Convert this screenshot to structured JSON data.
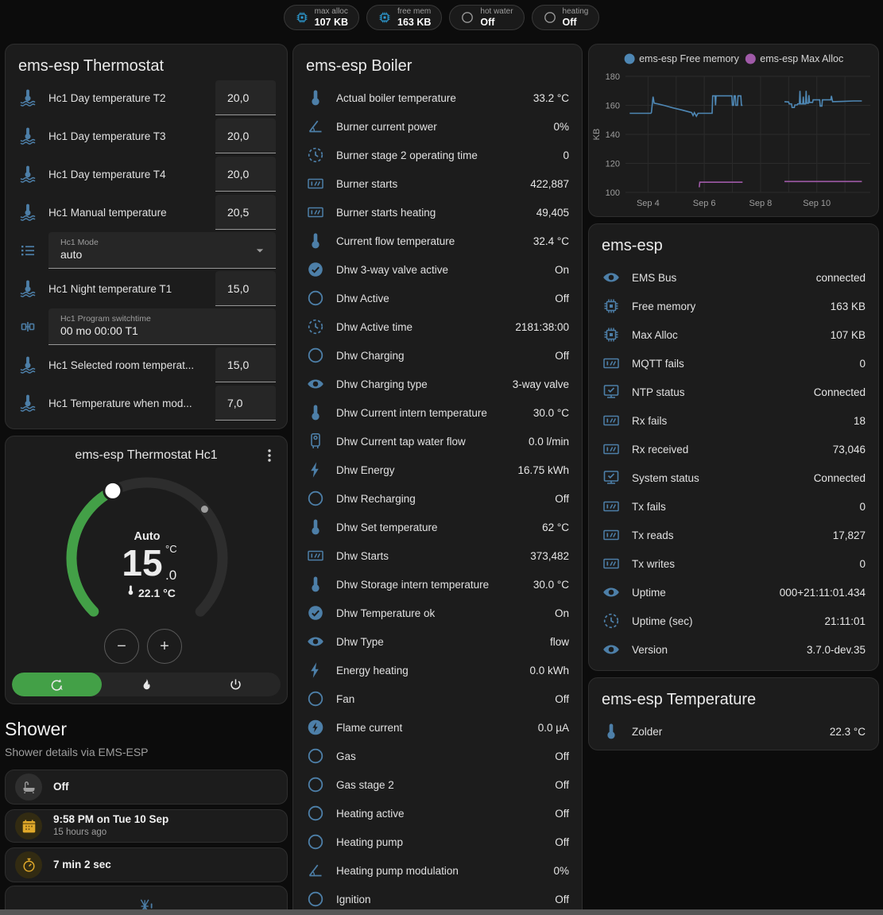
{
  "colors": {
    "icon_blue": "#4d7fa8",
    "chip_icon_blue": "#2d9fd8",
    "accent_green": "#43a047",
    "yellow": "#e0a92a",
    "chart_blue": "#4e87b4",
    "chart_purple": "#a05aa8"
  },
  "header": {
    "chips": [
      {
        "label": "max alloc",
        "value": "107 KB",
        "icon": "chip",
        "icon_color": "#2d9fd8"
      },
      {
        "label": "free mem",
        "value": "163 KB",
        "icon": "chip",
        "icon_color": "#2d9fd8"
      },
      {
        "label": "hot water",
        "value": "Off",
        "icon": "circle-outline",
        "icon_color": "#9a9a9a"
      },
      {
        "label": "heating",
        "value": "Off",
        "icon": "circle-outline",
        "icon_color": "#9a9a9a"
      }
    ]
  },
  "thermostat_card": {
    "title": "ems-esp Thermostat",
    "rows": [
      {
        "type": "number",
        "icon": "thermometer-water",
        "label": "Hc1 Day temperature T2",
        "value": "20,0"
      },
      {
        "type": "number",
        "icon": "thermometer-water",
        "label": "Hc1 Day temperature T3",
        "value": "20,0"
      },
      {
        "type": "number",
        "icon": "thermometer-water",
        "label": "Hc1 Day temperature T4",
        "value": "20,0"
      },
      {
        "type": "number",
        "icon": "thermometer-water",
        "label": "Hc1 Manual temperature",
        "value": "20,5"
      },
      {
        "type": "select",
        "icon": "list",
        "label": "Hc1 Mode",
        "value": "auto"
      },
      {
        "type": "number",
        "icon": "thermometer-water",
        "label": "Hc1 Night temperature T1",
        "value": "15,0"
      },
      {
        "type": "text",
        "icon": "valve",
        "label": "Hc1 Program switchtime",
        "value": "00 mo 00:00 T1"
      },
      {
        "type": "number",
        "icon": "thermometer-water",
        "label": "Hc1 Selected room temperat...",
        "value": "15,0"
      },
      {
        "type": "number",
        "icon": "thermometer-water",
        "label": "Hc1 Temperature when mod...",
        "value": "7,0"
      }
    ]
  },
  "dial_card": {
    "title": "ems-esp Thermostat Hc1",
    "mode_label": "Auto",
    "target_int": "15",
    "target_unit": "°C",
    "target_decimal": ".0",
    "current_label": "22.1 °C",
    "scale_min": 5,
    "scale_max": 30,
    "target": 15.0,
    "current": 22.1,
    "minus_label": "−",
    "plus_label": "+",
    "modes": [
      {
        "name": "auto",
        "icon": "mode-auto",
        "active": true
      },
      {
        "name": "heat",
        "icon": "fire",
        "active": false
      },
      {
        "name": "off",
        "icon": "power",
        "active": false
      }
    ]
  },
  "shower": {
    "title": "Shower",
    "subtitle": "Shower details via EMS-ESP",
    "items": [
      {
        "icon": "bathtub",
        "icon_color": "#9e9e9e",
        "circle_bg": "#2f2f2f",
        "primary": "Off",
        "secondary": ""
      },
      {
        "icon": "calendar",
        "icon_color": "#e0a92a",
        "circle_bg": "#322b12",
        "primary": "9:58 PM on Tue 10 Sep",
        "secondary": "15 hours ago"
      },
      {
        "icon": "timer",
        "icon_color": "#e0a92a",
        "circle_bg": "#322b12",
        "primary": "7 min 2 sec",
        "secondary": ""
      }
    ],
    "frost_icon": "snowflake-alert"
  },
  "boiler_card": {
    "title": "ems-esp Boiler",
    "rows": [
      {
        "icon": "thermometer",
        "label": "Actual boiler temperature",
        "value": "33.2 °C"
      },
      {
        "icon": "angle",
        "label": "Burner current power",
        "value": "0%"
      },
      {
        "icon": "clock",
        "label": "Burner stage 2 operating time",
        "value": "0"
      },
      {
        "icon": "counter",
        "label": "Burner starts",
        "value": "422,887"
      },
      {
        "icon": "counter",
        "label": "Burner starts heating",
        "value": "49,405"
      },
      {
        "icon": "thermometer",
        "label": "Current flow temperature",
        "value": "32.4 °C"
      },
      {
        "icon": "check-circle",
        "label": "Dhw 3-way valve active",
        "value": "On"
      },
      {
        "icon": "circle-outline",
        "label": "Dhw Active",
        "value": "Off"
      },
      {
        "icon": "clock",
        "label": "Dhw Active time",
        "value": "2181:38:00"
      },
      {
        "icon": "circle-outline",
        "label": "Dhw Charging",
        "value": "Off"
      },
      {
        "icon": "eye",
        "label": "Dhw Charging type",
        "value": "3-way valve"
      },
      {
        "icon": "thermometer",
        "label": "Dhw Current intern temperature",
        "value": "30.0 °C"
      },
      {
        "icon": "water-heater",
        "label": "Dhw Current tap water flow",
        "value": "0.0 l/min"
      },
      {
        "icon": "flash",
        "label": "Dhw Energy",
        "value": "16.75 kWh"
      },
      {
        "icon": "circle-outline",
        "label": "Dhw Recharging",
        "value": "Off"
      },
      {
        "icon": "thermometer",
        "label": "Dhw Set temperature",
        "value": "62 °C"
      },
      {
        "icon": "counter",
        "label": "Dhw Starts",
        "value": "373,482"
      },
      {
        "icon": "thermometer",
        "label": "Dhw Storage intern temperature",
        "value": "30.0 °C"
      },
      {
        "icon": "check-circle",
        "label": "Dhw Temperature ok",
        "value": "On"
      },
      {
        "icon": "eye",
        "label": "Dhw Type",
        "value": "flow"
      },
      {
        "icon": "flash",
        "label": "Energy heating",
        "value": "0.0 kWh"
      },
      {
        "icon": "circle-outline",
        "label": "Fan",
        "value": "Off"
      },
      {
        "icon": "flash-circle",
        "label": "Flame current",
        "value": "0.0 µA"
      },
      {
        "icon": "circle-outline",
        "label": "Gas",
        "value": "Off"
      },
      {
        "icon": "circle-outline",
        "label": "Gas stage 2",
        "value": "Off"
      },
      {
        "icon": "circle-outline",
        "label": "Heating active",
        "value": "Off"
      },
      {
        "icon": "circle-outline",
        "label": "Heating pump",
        "value": "Off"
      },
      {
        "icon": "angle",
        "label": "Heating pump modulation",
        "value": "0%"
      },
      {
        "icon": "circle-outline",
        "label": "Ignition",
        "value": "Off"
      }
    ]
  },
  "emsesp_card": {
    "title": "ems-esp",
    "rows": [
      {
        "icon": "eye",
        "label": "EMS Bus",
        "value": "connected"
      },
      {
        "icon": "chip",
        "label": "Free memory",
        "value": "163 KB"
      },
      {
        "icon": "chip",
        "label": "Max Alloc",
        "value": "107 KB"
      },
      {
        "icon": "counter",
        "label": "MQTT fails",
        "value": "0"
      },
      {
        "icon": "monitor-check",
        "label": "NTP status",
        "value": "Connected"
      },
      {
        "icon": "counter",
        "label": "Rx fails",
        "value": "18"
      },
      {
        "icon": "counter",
        "label": "Rx received",
        "value": "73,046"
      },
      {
        "icon": "monitor-check",
        "label": "System status",
        "value": "Connected"
      },
      {
        "icon": "counter",
        "label": "Tx fails",
        "value": "0"
      },
      {
        "icon": "counter",
        "label": "Tx reads",
        "value": "17,827"
      },
      {
        "icon": "counter",
        "label": "Tx writes",
        "value": "0"
      },
      {
        "icon": "eye",
        "label": "Uptime",
        "value": "000+21:11:01.434"
      },
      {
        "icon": "clock",
        "label": "Uptime (sec)",
        "value": "21:11:01"
      },
      {
        "icon": "eye",
        "label": "Version",
        "value": "3.7.0-dev.35"
      }
    ]
  },
  "temperature_card": {
    "title": "ems-esp Temperature",
    "rows": [
      {
        "icon": "thermometer",
        "label": "Zolder",
        "value": "22.3 °C"
      }
    ]
  },
  "chart_data": {
    "type": "line",
    "title": "",
    "ylabel": "KB",
    "ylim": [
      100,
      180
    ],
    "y_ticks": [
      100,
      120,
      140,
      160,
      180
    ],
    "x_range_days": [
      3.2,
      11.9
    ],
    "x_ticks": [
      {
        "day": 4,
        "label": "Sep 4"
      },
      {
        "day": 6,
        "label": "Sep 6"
      },
      {
        "day": 8,
        "label": "Sep 8"
      },
      {
        "day": 10,
        "label": "Sep 10"
      }
    ],
    "grid": true,
    "legend_position": "top",
    "series": [
      {
        "name": "ems-esp Free memory",
        "color": "#4e87b4",
        "segments": [
          [
            [
              3.35,
              154.5
            ],
            [
              4.1,
              154.5
            ],
            [
              4.12,
              155
            ],
            [
              4.18,
              166
            ],
            [
              4.22,
              161.5
            ],
            [
              4.35,
              161
            ],
            [
              4.6,
              159.8
            ],
            [
              4.9,
              158.2
            ],
            [
              5.2,
              156.8
            ],
            [
              5.45,
              155.5
            ],
            [
              5.55,
              155
            ],
            [
              5.6,
              153
            ],
            [
              5.65,
              155
            ],
            [
              5.72,
              152.5
            ],
            [
              5.78,
              154.5
            ],
            [
              6.28,
              154.5
            ],
            [
              6.3,
              166.5
            ],
            [
              6.38,
              166.5
            ],
            [
              6.4,
              160
            ],
            [
              6.42,
              166.5
            ],
            [
              6.98,
              166.5
            ],
            [
              7.0,
              160
            ],
            [
              7.04,
              160
            ],
            [
              7.06,
              166.5
            ],
            [
              7.1,
              166.5
            ],
            [
              7.12,
              160
            ],
            [
              7.18,
              160
            ],
            [
              7.2,
              166.5
            ],
            [
              7.3,
              166.5
            ],
            [
              7.32,
              160
            ],
            [
              7.36,
              160
            ]
          ],
          [
            [
              8.85,
              162.5
            ],
            [
              9.0,
              162.3
            ],
            [
              9.02,
              161
            ],
            [
              9.1,
              161
            ],
            [
              9.12,
              158.5
            ],
            [
              9.2,
              158.5
            ],
            [
              9.22,
              160.3
            ],
            [
              9.3,
              160.3
            ],
            [
              9.32,
              161
            ],
            [
              9.38,
              161
            ],
            [
              9.4,
              170
            ],
            [
              9.42,
              161
            ],
            [
              9.5,
              161
            ],
            [
              9.52,
              166
            ],
            [
              9.54,
              161
            ],
            [
              9.6,
              161
            ],
            [
              9.62,
              170
            ],
            [
              9.64,
              161.5
            ],
            [
              9.7,
              161.5
            ],
            [
              9.72,
              167
            ],
            [
              9.74,
              162
            ],
            [
              9.85,
              162
            ],
            [
              9.87,
              163.8
            ],
            [
              10.1,
              163.8
            ],
            [
              10.12,
              159.5
            ],
            [
              10.18,
              159.5
            ],
            [
              10.2,
              163.8
            ],
            [
              10.5,
              163.8
            ],
            [
              10.52,
              166.5
            ],
            [
              10.56,
              162.5
            ],
            [
              10.9,
              162.7
            ],
            [
              11.3,
              163
            ],
            [
              11.6,
              163
            ]
          ]
        ]
      },
      {
        "name": "ems-esp Max Alloc",
        "color": "#a05aa8",
        "segments": [
          [
            [
              5.82,
              103.5
            ],
            [
              5.84,
              107
            ],
            [
              7.36,
              107
            ]
          ],
          [
            [
              8.85,
              107.5
            ],
            [
              11.6,
              107.5
            ]
          ]
        ]
      }
    ]
  }
}
